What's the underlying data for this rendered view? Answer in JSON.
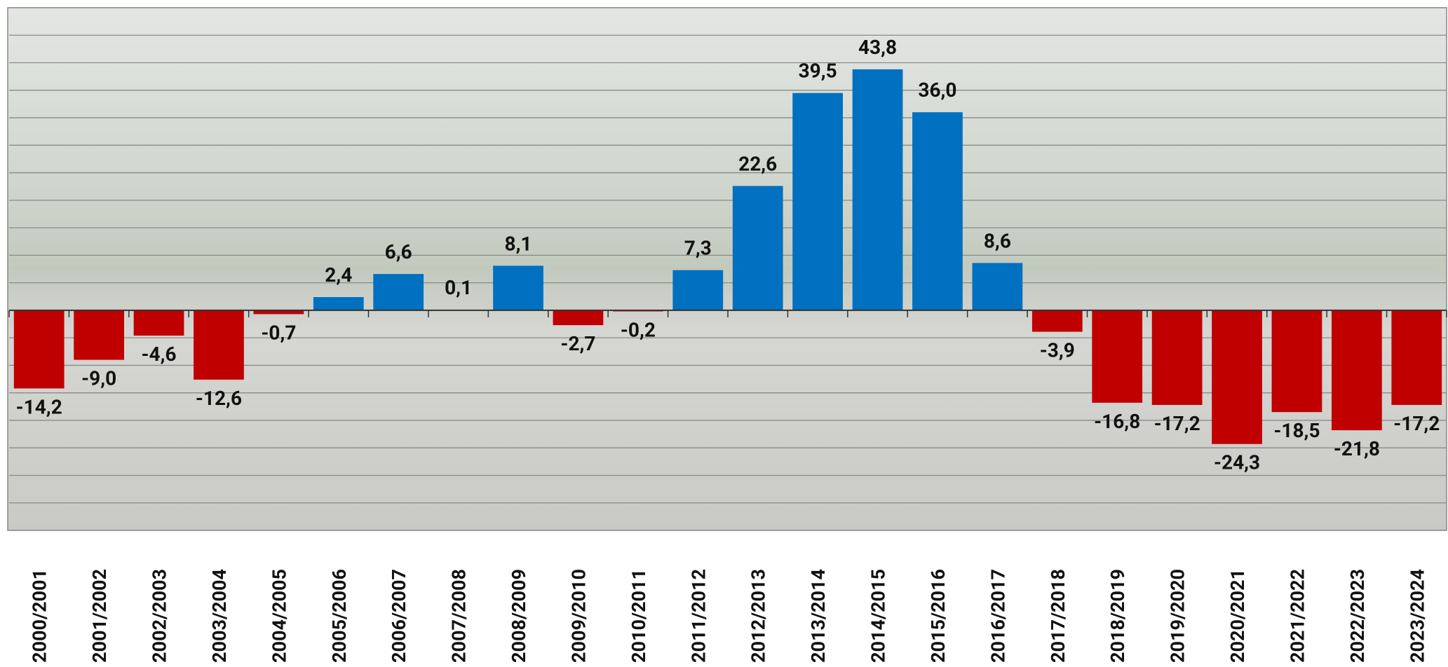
{
  "chart_data": {
    "type": "bar",
    "categories": [
      "2000/2001",
      "2001/2002",
      "2002/2003",
      "2003/2004",
      "2004/2005",
      "2005/2006",
      "2006/2007",
      "2007/2008",
      "2008/2009",
      "2009/2010",
      "2010/2011",
      "2011/2012",
      "2012/2013",
      "2013/2014",
      "2014/2015",
      "2015/2016",
      "2016/2017",
      "2017/2018",
      "2018/2019",
      "2019/2020",
      "2020/2021",
      "2021/2022",
      "2022/2023",
      "2023/2024"
    ],
    "values": [
      -14.2,
      -9.0,
      -4.6,
      -12.6,
      -0.7,
      2.4,
      6.6,
      0.1,
      8.1,
      -2.7,
      -0.2,
      7.3,
      22.6,
      39.5,
      43.8,
      36.0,
      8.6,
      -3.9,
      -16.8,
      -17.2,
      -24.3,
      -18.5,
      -21.8,
      -17.2
    ],
    "value_labels": [
      "-14,2",
      "-9,0",
      "-4,6",
      "-12,6",
      "-0,7",
      "2,4",
      "6,6",
      "0,1",
      "8,1",
      "-2,7",
      "-0,2",
      "7,3",
      "22,6",
      "39,5",
      "43,8",
      "36,0",
      "8,6",
      "-3,9",
      "-16,8",
      "-17,2",
      "-24,3",
      "-18,5",
      "-21,8",
      "-17,2"
    ],
    "positive_color": "#0070c0",
    "negative_color": "#c00000",
    "ylim": [
      -40,
      55
    ],
    "yticks": [
      -40,
      -35,
      -30,
      -25,
      -20,
      -15,
      -10,
      -5,
      0,
      5,
      10,
      15,
      20,
      25,
      30,
      35,
      40,
      45,
      50,
      55
    ],
    "grid": true
  }
}
